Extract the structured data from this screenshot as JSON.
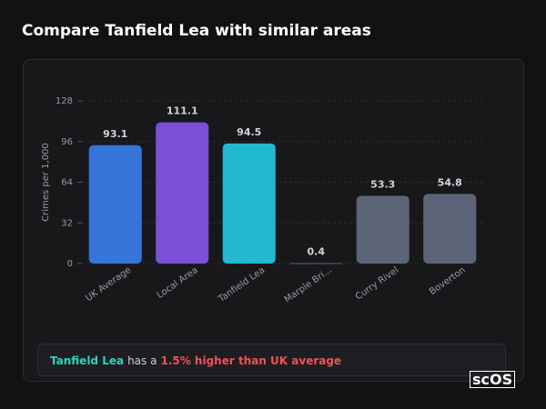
{
  "page_title": "Compare Tanfield Lea with similar areas",
  "chart_data": {
    "type": "bar",
    "y_label": "Crimes per 1,000",
    "categories": [
      "UK Average",
      "Local Area",
      "Tanfield Lea",
      "Marple Bri...",
      "Curry Rivel",
      "Boverton"
    ],
    "values": [
      93.1,
      111.1,
      94.5,
      0.4,
      53.3,
      54.8
    ],
    "colors": [
      "#3574d9",
      "#7b4fd6",
      "#22b8cf",
      "#5b6577",
      "#5b6577",
      "#5b6577"
    ],
    "ylim": [
      0,
      128
    ],
    "yticks": [
      0,
      32,
      64,
      96,
      128
    ],
    "grid": true
  },
  "comparison": {
    "area": "Tanfield Lea",
    "text": "has a",
    "highlight": "1.5% higher than UK average"
  },
  "logo": "scOS"
}
